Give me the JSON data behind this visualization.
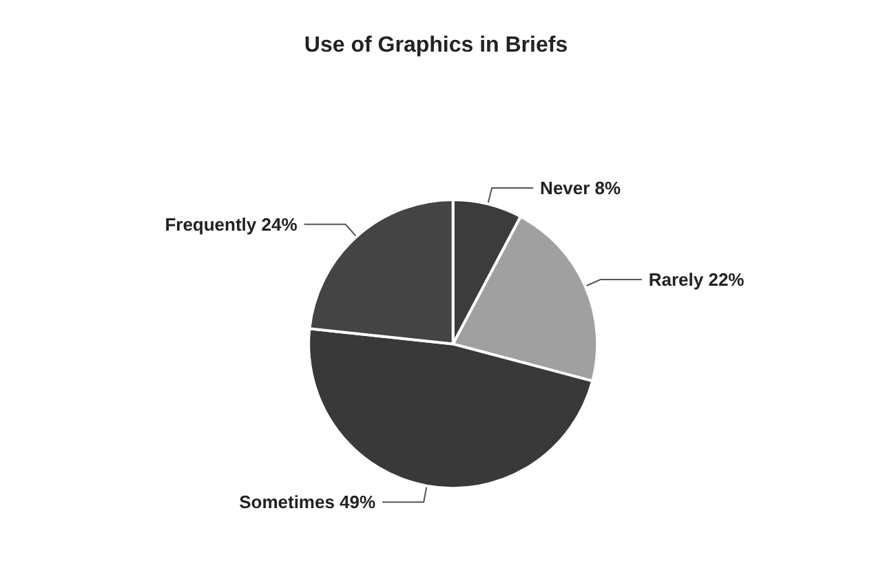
{
  "chart_data": {
    "type": "pie",
    "title": "Use of Graphics in Briefs",
    "categories": [
      "Never",
      "Rarely",
      "Sometimes",
      "Frequently"
    ],
    "values": [
      8,
      22,
      49,
      24
    ],
    "value_labels": [
      "8%",
      "22%",
      "49%",
      "24%"
    ],
    "colors": [
      "#3c3c3c",
      "#a0a0a0",
      "#393939",
      "#444444"
    ],
    "legend": false
  }
}
